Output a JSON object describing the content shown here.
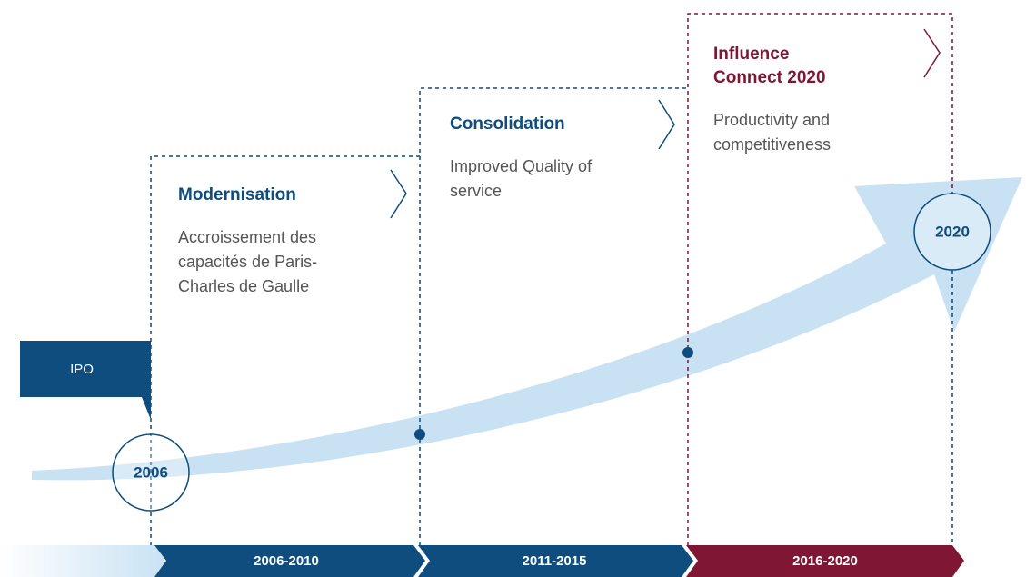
{
  "ipo": "IPO",
  "milestones": [
    "2006",
    "2020"
  ],
  "phases": [
    {
      "title": [
        "Modernisation"
      ],
      "description": [
        "Accroissement des",
        "capacités de Paris-",
        "Charles de Gaulle"
      ],
      "period": "2006-2010"
    },
    {
      "title": [
        "Consolidation"
      ],
      "description": [
        "Improved Quality of",
        "service"
      ],
      "period": "2011-2015"
    },
    {
      "title": [
        "Influence",
        "Connect 2020"
      ],
      "description": [
        "Productivity and",
        "competitiveness"
      ],
      "period": "2016-2020"
    }
  ]
}
